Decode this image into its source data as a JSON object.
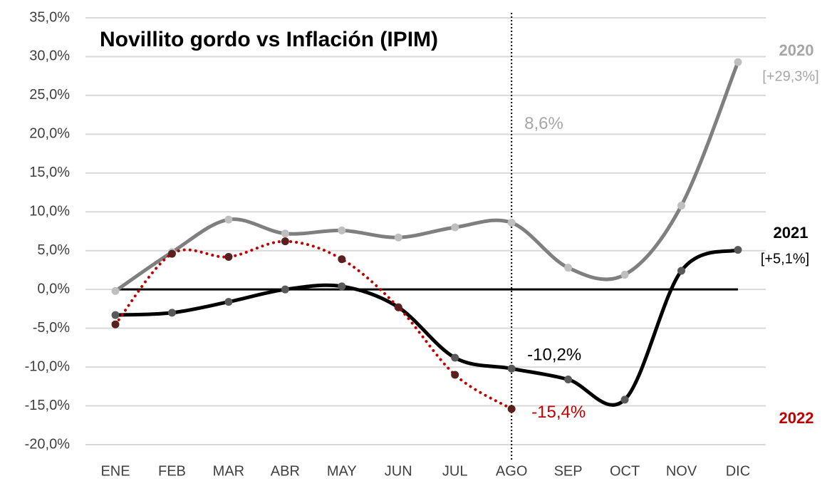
{
  "chart_data": {
    "type": "line",
    "title": "Novillito gordo vs Inflación (IPIM)",
    "categories": [
      "ENE",
      "FEB",
      "MAR",
      "ABR",
      "MAY",
      "JUN",
      "JUL",
      "AGO",
      "SEP",
      "OCT",
      "NOV",
      "DIC"
    ],
    "series": [
      {
        "name": "2020",
        "color": "#7f7f7f",
        "marker_color": "#bfbfbf",
        "label_color": "#a6a6a6",
        "dotted": false,
        "values": [
          -0.2,
          4.8,
          9.0,
          7.2,
          7.6,
          6.7,
          8.0,
          8.6,
          2.8,
          1.9,
          10.8,
          29.3
        ],
        "value_labels": [
          null,
          null,
          null,
          null,
          null,
          null,
          null,
          "8,6%",
          null,
          null,
          null,
          "[+29,3%]"
        ]
      },
      {
        "name": "2021",
        "color": "#000000",
        "marker_color": "#595959",
        "label_color": "#000000",
        "dotted": false,
        "values": [
          -3.3,
          -3.0,
          -1.6,
          0.0,
          0.4,
          -2.3,
          -8.8,
          -10.2,
          -11.6,
          -14.2,
          2.4,
          5.1
        ],
        "value_labels": [
          null,
          null,
          null,
          null,
          null,
          null,
          null,
          "-10,2%",
          null,
          null,
          null,
          "[+5,1%]"
        ]
      },
      {
        "name": "2022",
        "color": "#c00000",
        "marker_color": "#5a2020",
        "label_color": "#c00000",
        "dotted": true,
        "values": [
          -4.5,
          4.6,
          4.2,
          6.2,
          3.9,
          -2.3,
          -11.0,
          -15.4,
          null,
          null,
          null,
          null
        ],
        "value_labels": [
          null,
          null,
          null,
          null,
          null,
          null,
          null,
          "-15,4%",
          null,
          null,
          null,
          null
        ]
      }
    ],
    "vline": "AGO",
    "ylim": [
      -20,
      35
    ],
    "yticks": [
      {
        "value": -20,
        "label": "-20,0%"
      },
      {
        "value": -15,
        "label": "-15,0%"
      },
      {
        "value": -10,
        "label": "-10,0%"
      },
      {
        "value": -5,
        "label": "-5,0%"
      },
      {
        "value": 0,
        "label": "0,0%"
      },
      {
        "value": 5,
        "label": "5,0%"
      },
      {
        "value": 10,
        "label": "10,0%"
      },
      {
        "value": 15,
        "label": "15,0%"
      },
      {
        "value": 20,
        "label": "20,0%"
      },
      {
        "value": 25,
        "label": "25,0%"
      },
      {
        "value": 30,
        "label": "30,0%"
      },
      {
        "value": 35,
        "label": "35,0%"
      }
    ],
    "grid": true
  }
}
